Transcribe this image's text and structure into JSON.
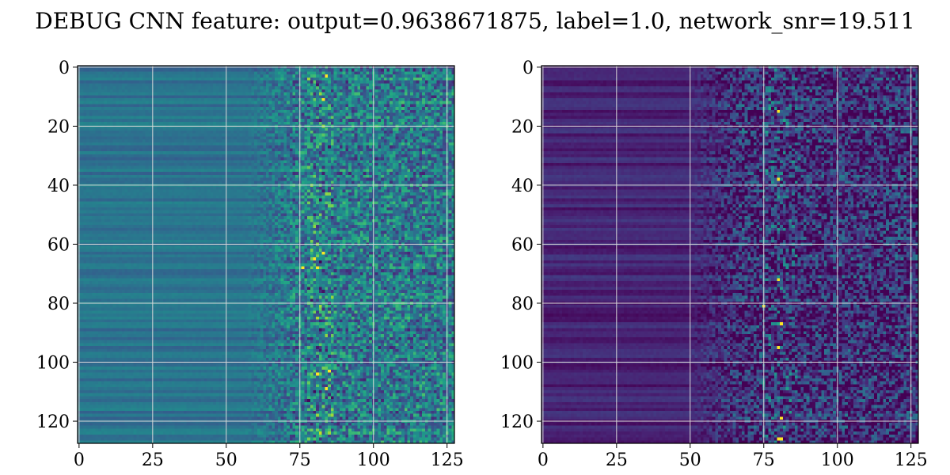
{
  "title": "DEBUG CNN feature: output=0.9638671875, label=1.0, network_snr=19.511",
  "chart_data": [
    {
      "type": "heatmap",
      "title": "",
      "xlabel": "",
      "ylabel": "",
      "rows": 128,
      "cols": 128,
      "xlim": [
        0,
        127
      ],
      "ylim": [
        127,
        0
      ],
      "xticks": [
        0,
        25,
        50,
        75,
        100,
        125
      ],
      "yticks": [
        0,
        20,
        40,
        60,
        80,
        100,
        120
      ],
      "grid": true,
      "colormap": "viridis",
      "background_level": 0.38,
      "noise_onset_col": 55,
      "bright_band_cols": [
        78,
        86
      ],
      "hotspots": [
        [
          3,
          84
        ],
        [
          11,
          83
        ],
        [
          63,
          83
        ],
        [
          65,
          80
        ],
        [
          68,
          76
        ],
        [
          68,
          81
        ],
        [
          103,
          85
        ],
        [
          104,
          81
        ],
        [
          109,
          84
        ]
      ]
    },
    {
      "type": "heatmap",
      "title": "",
      "xlabel": "",
      "ylabel": "",
      "rows": 128,
      "cols": 128,
      "xlim": [
        0,
        127
      ],
      "ylim": [
        127,
        0
      ],
      "xticks": [
        0,
        25,
        50,
        75,
        100,
        125
      ],
      "yticks": [
        0,
        20,
        40,
        60,
        80,
        100,
        120
      ],
      "grid": true,
      "colormap": "viridis",
      "background_level": 0.1,
      "noise_onset_col": 48,
      "bright_band_cols": [
        75,
        86
      ],
      "hotspots": [
        [
          15,
          80
        ],
        [
          38,
          80
        ],
        [
          72,
          80
        ],
        [
          81,
          75
        ],
        [
          87,
          81
        ],
        [
          95,
          80
        ],
        [
          119,
          81
        ],
        [
          126,
          80
        ],
        [
          126,
          81
        ]
      ]
    }
  ]
}
